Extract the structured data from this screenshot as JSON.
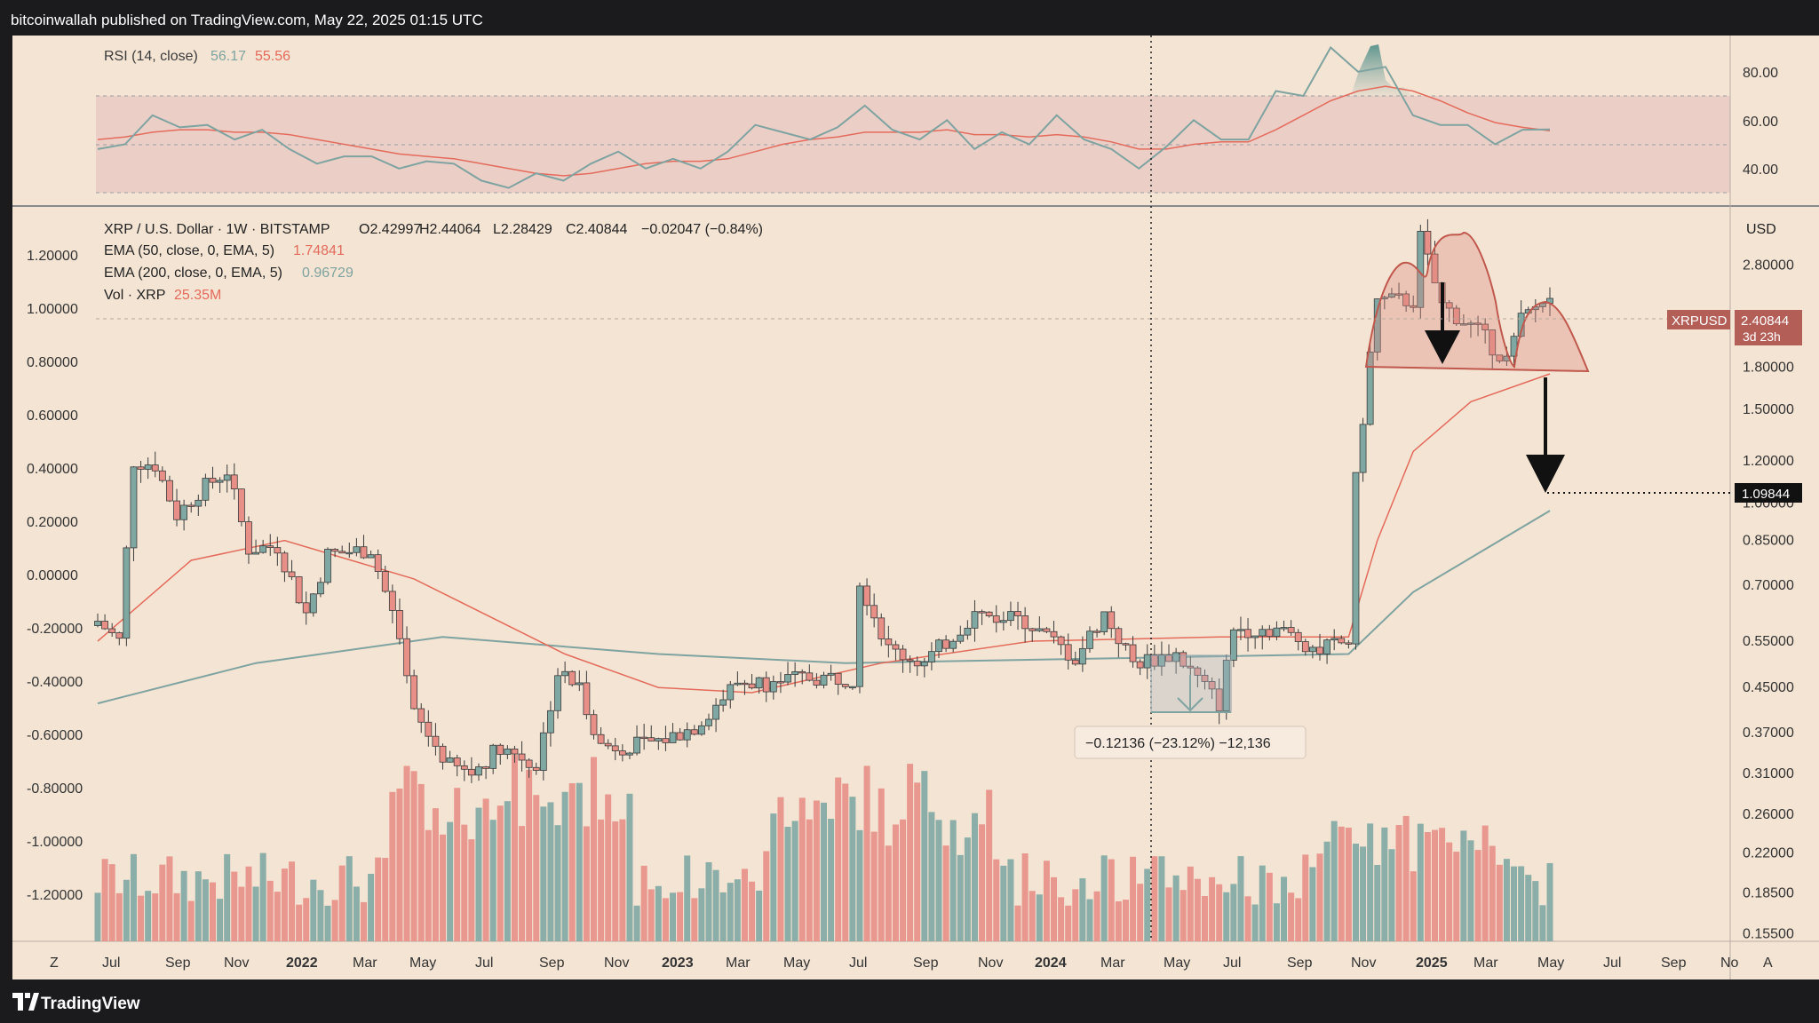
{
  "header": {
    "published_by": "bitcoinwallah published on TradingView.com, May 22, 2025 01:15 UTC"
  },
  "rsi_panel": {
    "legend_name": "RSI (14, close)",
    "legend_value_1": "56.17",
    "legend_value_2": "55.56",
    "axis_ticks": [
      "80.00",
      "60.00",
      "40.00"
    ]
  },
  "main_panel": {
    "symbol_line": "XRP / U.S. Dollar · 1W · BITSTAMP",
    "ohlc": {
      "open": "O2.42997",
      "high": "H2.44064",
      "low": "L2.28429",
      "close": "C2.40844",
      "change": "−0.02047 (−0.84%)"
    },
    "ema50": {
      "label": "EMA (50, close, 0, EMA, 5)",
      "value": "1.74841"
    },
    "ema200": {
      "label": "EMA (200, close, 0, EMA, 5)",
      "value": "0.96729"
    },
    "volume": {
      "label": "Vol · XRP",
      "value": "25.35M"
    },
    "currency": "USD",
    "price_badge": {
      "symbol": "XRPUSD",
      "price": "2.40844",
      "countdown": "3d 23h"
    },
    "target_badge": "1.09844",
    "measure_label": "−0.12136 (−23.12%) −12,136",
    "left_axis_ticks": [
      "1.20000",
      "1.00000",
      "0.80000",
      "0.60000",
      "0.40000",
      "0.20000",
      "0.00000",
      "-0.20000",
      "-0.40000",
      "-0.60000",
      "-0.80000",
      "-1.00000",
      "-1.20000"
    ],
    "right_axis_ticks": [
      "2.80000",
      "1.80000",
      "1.50000",
      "1.20000",
      "1.00000",
      "0.85000",
      "0.70000",
      "0.55000",
      "0.45000",
      "0.37000",
      "0.31000",
      "0.26000",
      "0.22000",
      "0.18500",
      "0.15500"
    ],
    "x_axis_ticks": [
      "Jul",
      "Sep",
      "Nov",
      "2022",
      "Mar",
      "May",
      "Jul",
      "Sep",
      "Nov",
      "2023",
      "Mar",
      "May",
      "Jul",
      "Sep",
      "Nov",
      "2024",
      "Mar",
      "May",
      "Jul",
      "Sep",
      "Nov",
      "2025",
      "Mar",
      "May",
      "Jul",
      "Sep",
      "No"
    ],
    "left_corner_label": "Z",
    "right_corner_label": "A"
  },
  "footer": {
    "brand": "TradingView"
  },
  "colors": {
    "bull": "#7fa8a3",
    "bear": "#e88f88",
    "ema50": "#e46b5c",
    "ema200": "#7ea3a0",
    "rsi_line": "#7ea3a0",
    "rsi_ma": "#e46b5c",
    "background": "#f4e4d3"
  },
  "chart_data": {
    "type": "candlestick",
    "interval": "1W",
    "price_scale": "log",
    "x_range": [
      "2021-07",
      "2025-11"
    ],
    "price_ylim": [
      0.15,
      3.4
    ],
    "series": [
      {
        "name": "XRP / U.S. Dollar",
        "points": [
          {
            "date": "2021-07-05",
            "close": 0.6
          },
          {
            "date": "2021-07-26",
            "close": 0.55
          },
          {
            "date": "2021-08-09",
            "close": 1.2
          },
          {
            "date": "2021-08-30",
            "close": 1.18
          },
          {
            "date": "2021-09-20",
            "close": 0.95
          },
          {
            "date": "2021-10-11",
            "close": 1.05
          },
          {
            "date": "2021-11-08",
            "close": 1.15
          },
          {
            "date": "2021-11-29",
            "close": 0.82
          },
          {
            "date": "2021-12-27",
            "close": 0.83
          },
          {
            "date": "2022-01-24",
            "close": 0.62
          },
          {
            "date": "2022-02-14",
            "close": 0.8
          },
          {
            "date": "2022-03-28",
            "close": 0.82
          },
          {
            "date": "2022-04-18",
            "close": 0.62
          },
          {
            "date": "2022-05-09",
            "close": 0.4
          },
          {
            "date": "2022-06-13",
            "close": 0.32
          },
          {
            "date": "2022-07-04",
            "close": 0.31
          },
          {
            "date": "2022-08-01",
            "close": 0.35
          },
          {
            "date": "2022-09-05",
            "close": 0.32
          },
          {
            "date": "2022-09-26",
            "close": 0.48
          },
          {
            "date": "2022-10-17",
            "close": 0.45
          },
          {
            "date": "2022-11-07",
            "close": 0.35
          },
          {
            "date": "2022-12-12",
            "close": 0.35
          },
          {
            "date": "2023-01-09",
            "close": 0.36
          },
          {
            "date": "2023-02-06",
            "close": 0.38
          },
          {
            "date": "2023-03-20",
            "close": 0.46
          },
          {
            "date": "2023-04-17",
            "close": 0.46
          },
          {
            "date": "2023-05-29",
            "close": 0.47
          },
          {
            "date": "2023-07-10",
            "close": 0.47
          },
          {
            "date": "2023-07-17",
            "close": 0.72
          },
          {
            "date": "2023-08-14",
            "close": 0.53
          },
          {
            "date": "2023-09-18",
            "close": 0.5
          },
          {
            "date": "2023-11-06",
            "close": 0.62
          },
          {
            "date": "2023-12-25",
            "close": 0.6
          },
          {
            "date": "2024-02-12",
            "close": 0.51
          },
          {
            "date": "2024-03-11",
            "close": 0.62
          },
          {
            "date": "2024-04-08",
            "close": 0.5
          },
          {
            "date": "2024-05-20",
            "close": 0.52
          },
          {
            "date": "2024-07-01",
            "close": 0.42
          },
          {
            "date": "2024-07-15",
            "close": 0.58
          },
          {
            "date": "2024-08-26",
            "close": 0.58
          },
          {
            "date": "2024-10-07",
            "close": 0.53
          },
          {
            "date": "2024-11-04",
            "close": 0.55
          },
          {
            "date": "2024-11-11",
            "close": 1.1
          },
          {
            "date": "2024-11-25",
            "close": 1.9
          },
          {
            "date": "2024-12-02",
            "close": 2.4
          },
          {
            "date": "2025-01-06",
            "close": 2.4
          },
          {
            "date": "2025-01-13",
            "close": 3.15
          },
          {
            "date": "2025-02-03",
            "close": 2.35
          },
          {
            "date": "2025-02-24",
            "close": 2.2
          },
          {
            "date": "2025-03-10",
            "close": 2.1
          },
          {
            "date": "2025-04-07",
            "close": 1.85
          },
          {
            "date": "2025-04-21",
            "close": 2.2
          },
          {
            "date": "2025-05-12",
            "close": 2.4
          },
          {
            "date": "2025-05-19",
            "close": 2.40844
          }
        ]
      },
      {
        "name": "EMA (50, close, 0, EMA, 5)",
        "points": [
          {
            "date": "2021-07-05",
            "value": 0.55
          },
          {
            "date": "2021-10-04",
            "value": 0.78
          },
          {
            "date": "2022-01-03",
            "value": 0.85
          },
          {
            "date": "2022-05-09",
            "value": 0.72
          },
          {
            "date": "2022-10-03",
            "value": 0.52
          },
          {
            "date": "2023-01-02",
            "value": 0.45
          },
          {
            "date": "2023-04-03",
            "value": 0.44
          },
          {
            "date": "2023-08-07",
            "value": 0.5
          },
          {
            "date": "2024-01-01",
            "value": 0.55
          },
          {
            "date": "2024-07-01",
            "value": 0.56
          },
          {
            "date": "2024-11-04",
            "value": 0.56
          },
          {
            "date": "2024-12-02",
            "value": 0.85
          },
          {
            "date": "2025-01-06",
            "value": 1.25
          },
          {
            "date": "2025-03-03",
            "value": 1.55
          },
          {
            "date": "2025-05-19",
            "value": 1.74841
          }
        ]
      },
      {
        "name": "EMA (200, close, 0, EMA, 5)",
        "points": [
          {
            "date": "2021-07-05",
            "value": 0.42
          },
          {
            "date": "2021-12-06",
            "value": 0.5
          },
          {
            "date": "2022-06-06",
            "value": 0.56
          },
          {
            "date": "2023-01-02",
            "value": 0.52
          },
          {
            "date": "2023-07-03",
            "value": 0.5
          },
          {
            "date": "2024-03-04",
            "value": 0.51
          },
          {
            "date": "2024-11-04",
            "value": 0.52
          },
          {
            "date": "2025-01-06",
            "value": 0.68
          },
          {
            "date": "2025-05-19",
            "value": 0.96729
          }
        ]
      }
    ],
    "rsi": {
      "name": "RSI (14, close)",
      "ylim": [
        30,
        92
      ],
      "bands": [
        70,
        50,
        30
      ],
      "values": [
        48,
        50,
        62,
        57,
        58,
        52,
        56,
        48,
        42,
        45,
        45,
        40,
        43,
        42,
        35,
        32,
        38,
        35,
        42,
        47,
        40,
        44,
        40,
        47,
        58,
        55,
        52,
        57,
        66,
        56,
        52,
        60,
        48,
        55,
        50,
        62,
        52,
        48,
        40,
        49,
        60,
        52,
        52,
        72,
        70,
        90,
        80,
        82,
        62,
        58,
        58,
        50,
        56,
        56.17
      ],
      "ma_values": [
        52,
        53,
        55,
        56,
        56,
        55,
        55,
        54,
        52,
        50,
        48,
        46,
        45,
        44,
        42,
        40,
        38,
        37,
        38,
        40,
        42,
        43,
        43,
        44,
        47,
        50,
        52,
        53,
        55,
        55,
        55,
        56,
        54,
        54,
        53,
        54,
        53,
        51,
        48,
        48,
        50,
        51,
        51,
        56,
        62,
        68,
        72,
        74,
        72,
        68,
        63,
        59,
        57,
        55.56
      ]
    },
    "annotations": [
      {
        "type": "measure",
        "from": "2024-05-06",
        "to": "2024-07-01",
        "change": "−0.12136 (−23.12%) −12,136"
      },
      {
        "type": "pattern",
        "name": "head and shoulders"
      },
      {
        "type": "target",
        "value": 1.09844
      }
    ]
  }
}
